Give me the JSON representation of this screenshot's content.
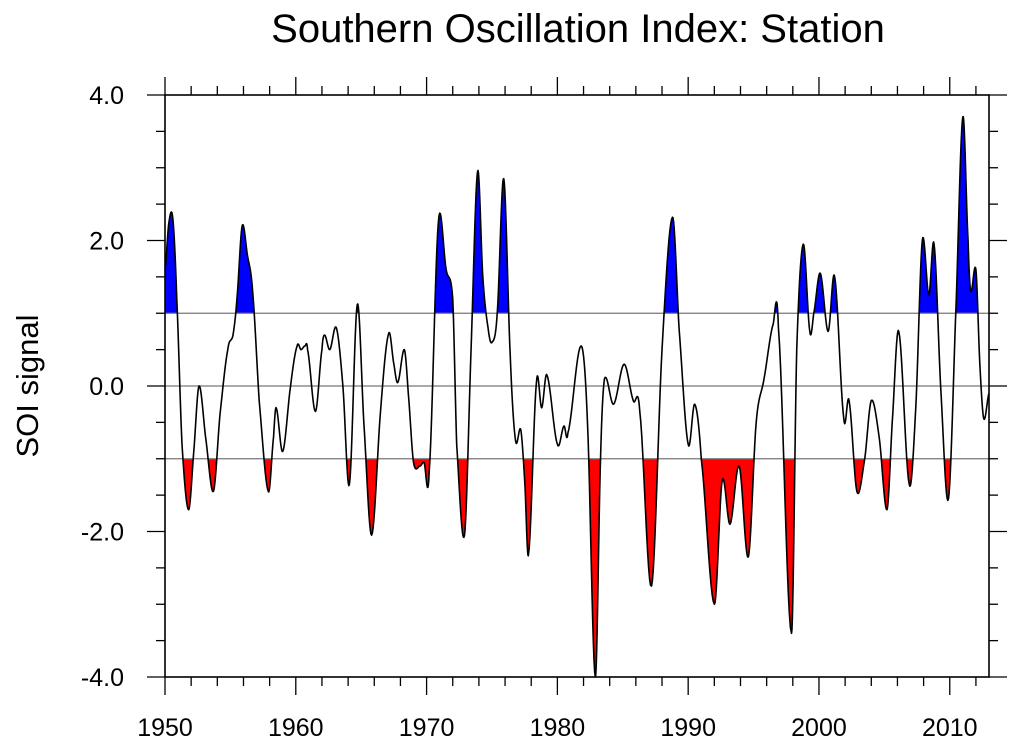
{
  "chart_data": {
    "type": "area",
    "title": "Southern Oscillation Index: Station",
    "xlabel": "",
    "ylabel": "SOI signal",
    "xlim": [
      1950,
      2013
    ],
    "ylim": [
      -4.0,
      4.0
    ],
    "x_ticks": [
      1950,
      1960,
      1970,
      1980,
      1990,
      2000,
      2010
    ],
    "x_tick_labels": [
      "1950",
      "1960",
      "1970",
      "1980",
      "1990",
      "2000",
      "2010"
    ],
    "y_ticks": [
      -4.0,
      -2.0,
      0.0,
      2.0,
      4.0
    ],
    "y_tick_labels": [
      "-4.0",
      "-2.0",
      "0.0",
      "2.0",
      "4.0"
    ],
    "reference_lines": [
      1.0,
      0.0,
      -1.0
    ],
    "fill_above": {
      "threshold": 1.0,
      "color": "#0000ff"
    },
    "fill_below": {
      "threshold": -1.0,
      "color": "#ff0000"
    },
    "line_color": "#000000",
    "series": [
      {
        "name": "SOI signal",
        "x": [
          1950.0,
          1950.3,
          1950.6,
          1950.9,
          1951.3,
          1951.8,
          1952.2,
          1952.6,
          1953.1,
          1953.7,
          1954.2,
          1954.8,
          1955.2,
          1955.5,
          1955.9,
          1956.3,
          1956.7,
          1957.2,
          1957.9,
          1958.3,
          1958.5,
          1959.0,
          1959.6,
          1960.1,
          1960.4,
          1960.7,
          1960.9,
          1961.5,
          1962.0,
          1962.2,
          1962.6,
          1963.1,
          1963.6,
          1964.1,
          1964.7,
          1965.2,
          1965.8,
          1966.5,
          1967.1,
          1967.5,
          1967.8,
          1968.3,
          1968.6,
          1969.0,
          1969.5,
          1969.8,
          1970.2,
          1970.9,
          1971.5,
          1972.0,
          1972.3,
          1972.9,
          1973.4,
          1973.9,
          1974.3,
          1974.7,
          1975.0,
          1975.4,
          1975.9,
          1976.4,
          1976.8,
          1977.2,
          1977.5,
          1977.8,
          1978.4,
          1978.8,
          1979.2,
          1980.0,
          1980.5,
          1980.8,
          1981.8,
          1982.3,
          1982.9,
          1983.3,
          1983.6,
          1984.3,
          1985.1,
          1985.8,
          1986.3,
          1987.2,
          1988.0,
          1988.8,
          1989.3,
          1990.0,
          1990.5,
          1991.0,
          1992.0,
          1992.6,
          1993.2,
          1993.9,
          1994.6,
          1995.2,
          1995.8,
          1996.5,
          1996.9,
          1997.9,
          1998.3,
          1998.8,
          1999.3,
          1999.6,
          2000.1,
          2000.7,
          2001.2,
          2001.9,
          2002.3,
          2002.9,
          2003.5,
          2004.0,
          2004.6,
          2005.2,
          2005.6,
          2006.1,
          2006.9,
          2007.4,
          2007.9,
          2008.4,
          2008.8,
          2009.3,
          2009.9,
          2010.5,
          2011.0,
          2011.4,
          2011.6,
          2012.0,
          2012.3,
          2012.6,
          2013.0
        ],
        "values": [
          1.6,
          2.25,
          2.3,
          1.2,
          -0.8,
          -1.7,
          -0.9,
          0.0,
          -0.7,
          -1.45,
          -0.4,
          0.5,
          0.7,
          1.2,
          2.2,
          1.8,
          1.3,
          -0.2,
          -1.45,
          -0.7,
          -0.3,
          -0.9,
          0.0,
          0.55,
          0.5,
          0.55,
          0.5,
          -0.35,
          0.5,
          0.7,
          0.5,
          0.8,
          0.0,
          -1.35,
          1.12,
          -0.5,
          -2.05,
          -0.3,
          0.72,
          0.3,
          0.05,
          0.5,
          -0.1,
          -1.05,
          -1.1,
          -1.05,
          -1.18,
          2.25,
          1.6,
          1.2,
          -0.8,
          -2.05,
          0.5,
          2.95,
          1.5,
          0.8,
          0.6,
          1.0,
          2.85,
          0.4,
          -0.75,
          -0.6,
          -1.3,
          -2.3,
          0.05,
          -0.3,
          0.15,
          -0.8,
          -0.55,
          -0.65,
          0.55,
          -0.5,
          -4.0,
          -1.0,
          0.1,
          -0.25,
          0.3,
          -0.2,
          -0.35,
          -2.75,
          0.5,
          2.32,
          0.8,
          -0.8,
          -0.25,
          -1.0,
          -3.0,
          -1.3,
          -1.9,
          -1.1,
          -2.35,
          -0.5,
          0.1,
          0.85,
          0.8,
          -3.4,
          0.5,
          1.95,
          0.75,
          1.0,
          1.55,
          0.75,
          1.5,
          -0.45,
          -0.2,
          -1.45,
          -1.0,
          -0.2,
          -0.7,
          -1.7,
          -0.5,
          0.75,
          -1.35,
          -0.3,
          2.0,
          1.25,
          1.95,
          0.0,
          -1.55,
          1.2,
          3.7,
          2.0,
          1.3,
          1.6,
          0.3,
          -0.45,
          -0.1
        ]
      }
    ]
  }
}
